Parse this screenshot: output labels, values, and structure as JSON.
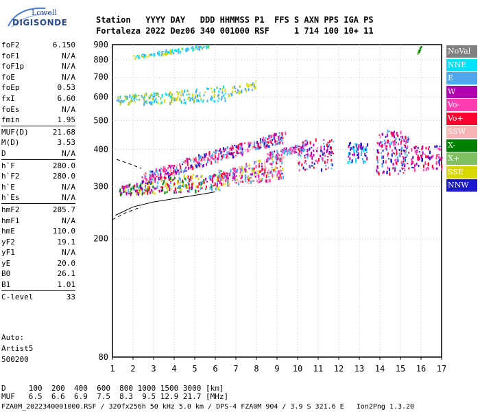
{
  "logo": {
    "line1": "Lowell",
    "line2": "DIGISONDE"
  },
  "header": {
    "row1": "Station   YYYY DAY   DDD HHMMSS P1  FFS S AXN PPS IGA PS",
    "row2": "Fortaleza 2022 Dez06 340 001000 RSF     1 714 100 10+ 11"
  },
  "params": [
    {
      "name": "foF2",
      "value": "6.150"
    },
    {
      "name": "foF1",
      "value": "N/A"
    },
    {
      "name": "foF1p",
      "value": "N/A"
    },
    {
      "name": "foE",
      "value": "N/A"
    },
    {
      "name": "foEp",
      "value": "0.53"
    },
    {
      "name": "fxI",
      "value": "6.60"
    },
    {
      "name": "foEs",
      "value": "N/A"
    },
    {
      "name": "fmin",
      "value": "1.95"
    },
    {
      "name": "MUF(D)",
      "value": "21.68",
      "sep": true
    },
    {
      "name": "M(D)",
      "value": "3.53"
    },
    {
      "name": "D",
      "value": "N/A"
    },
    {
      "name": "h`F",
      "value": "280.0",
      "sep": true
    },
    {
      "name": "h`F2",
      "value": "280.0"
    },
    {
      "name": "h`E",
      "value": "N/A"
    },
    {
      "name": "h`Es",
      "value": "N/A"
    },
    {
      "name": "hmF2",
      "value": "285.7",
      "sep": true
    },
    {
      "name": "hmF1",
      "value": "N/A"
    },
    {
      "name": "hmE",
      "value": "110.0"
    },
    {
      "name": "yF2",
      "value": "19.1"
    },
    {
      "name": "yF1",
      "value": "N/A"
    },
    {
      "name": "yE",
      "value": "20.0"
    },
    {
      "name": "B0",
      "value": "26.1"
    },
    {
      "name": "B1",
      "value": "1.01"
    },
    {
      "name": "C-level",
      "value": "33",
      "sep": true
    }
  ],
  "auto": {
    "line1": "Auto:",
    "line2": "Artist5",
    "line3": "500200"
  },
  "footer": {
    "d_row": "D     100  200  400  600  800 1000 1500 3000 [km]",
    "muf_row": "MUF   6.5  6.6  6.9  7.5  8.3  9.5 12.9 21.7 [MHz]",
    "info_row": "FZA0M_2022340001000.RSF / 320fx256h 50 kHz 5.0 km / DPS-4 FZA0M 904 / 3.9 S 321.6 E   Ion2Png 1.3.20"
  },
  "legend": [
    {
      "label": "NoVal",
      "color": "#808080"
    },
    {
      "label": "NNE",
      "color": "#00e0ff"
    },
    {
      "label": "E",
      "color": "#4fa8ee"
    },
    {
      "label": "W",
      "color": "#b000b0"
    },
    {
      "label": "Vo-",
      "color": "#ff3fb0"
    },
    {
      "label": "Vo+",
      "color": "#ff0030"
    },
    {
      "label": "SSW",
      "color": "#f8b4b4"
    },
    {
      "label": "X-",
      "color": "#008000"
    },
    {
      "label": "X+",
      "color": "#80c060"
    },
    {
      "label": "SSE",
      "color": "#d8d800"
    },
    {
      "label": "NNW",
      "color": "#1a1acc"
    }
  ],
  "chart_data": {
    "type": "scatter",
    "xlabel": "",
    "ylabel": "",
    "xlim": [
      1,
      17
    ],
    "ylim": [
      80,
      900
    ],
    "y_scale": "log",
    "xticks": [
      1,
      2,
      3,
      4,
      5,
      6,
      7,
      8,
      9,
      10,
      11,
      12,
      13,
      14,
      15,
      16,
      17
    ],
    "yticks": [
      80,
      200,
      300,
      400,
      500,
      600,
      700,
      800,
      900
    ],
    "grid": true,
    "legend_position": "right",
    "trace_curves": [
      {
        "name": "",
        "style": "solid",
        "points": [
          [
            1.15,
            240
          ],
          [
            2.0,
            256
          ],
          [
            3.0,
            266
          ],
          [
            4.0,
            273
          ],
          [
            5.0,
            280
          ],
          [
            5.8,
            286
          ],
          [
            6.0,
            288
          ]
        ]
      },
      {
        "name": "",
        "style": "dashed",
        "points": [
          [
            1.0,
            232
          ],
          [
            1.6,
            244
          ],
          [
            2.4,
            256
          ]
        ]
      },
      {
        "name": "",
        "style": "dashed",
        "points": [
          [
            1.2,
            370
          ],
          [
            1.8,
            358
          ],
          [
            2.4,
            345
          ]
        ]
      }
    ],
    "echo_bands": [
      {
        "x": [
          1.3,
          6.3
        ],
        "y_start": [
          280,
          300
        ],
        "y_end": [
          290,
          340
        ],
        "colors": [
          "#ff0030",
          "#b000b0",
          "#4fa8ee",
          "#d8d800",
          "#008000"
        ],
        "count": 260
      },
      {
        "x": [
          6.0,
          9.3
        ],
        "y_start": [
          300,
          330
        ],
        "y_end": [
          315,
          390
        ],
        "colors": [
          "#4fa8ee",
          "#d8d800",
          "#ff0030",
          "#b000b0",
          "#f8b4b4",
          "#ff3fb0"
        ],
        "count": 260
      },
      {
        "x": [
          8.5,
          10.3
        ],
        "y_start": [
          370,
          390
        ],
        "y_end": [
          395,
          415
        ],
        "colors": [
          "#4fa8ee",
          "#b000b0",
          "#ff3fb0"
        ],
        "count": 70
      },
      {
        "x": [
          2.4,
          9.4
        ],
        "y_start": [
          330,
          300
        ],
        "y_end": [
          460,
          420
        ],
        "colors": [
          "#b000b0",
          "#ff3fb0",
          "#ff0030",
          "#4fa8ee",
          "#1a1acc",
          "#f8b4b4"
        ],
        "count": 420
      },
      {
        "x": [
          10.0,
          11.7
        ],
        "y_start": [
          340,
          430
        ],
        "y_end": [
          340,
          430
        ],
        "colors": [
          "#b000b0",
          "#ff0030",
          "#ff3fb0",
          "#1a1acc",
          "#4fa8ee"
        ],
        "count": 110
      },
      {
        "x": [
          12.4,
          13.4
        ],
        "y_start": [
          360,
          420
        ],
        "y_end": [
          360,
          420
        ],
        "colors": [
          "#1a1acc",
          "#4fa8ee",
          "#b000b0",
          "#00e0ff"
        ],
        "count": 70
      },
      {
        "x": [
          13.8,
          15.4
        ],
        "y_start": [
          330,
          460
        ],
        "y_end": [
          330,
          460
        ],
        "colors": [
          "#b000b0",
          "#ff3fb0",
          "#1a1acc",
          "#4fa8ee",
          "#ff0030"
        ],
        "count": 170
      },
      {
        "x": [
          15.5,
          17.0
        ],
        "y_start": [
          340,
          410
        ],
        "y_end": [
          340,
          410
        ],
        "colors": [
          "#b000b0",
          "#ff3fb0",
          "#1a1acc",
          "#ff0030"
        ],
        "count": 90
      },
      {
        "x": [
          1.2,
          6.5
        ],
        "y_start": [
          560,
          600
        ],
        "y_end": [
          580,
          650
        ],
        "colors": [
          "#4fa8ee",
          "#d8d800",
          "#80c060",
          "#00e0ff"
        ],
        "count": 190
      },
      {
        "x": [
          6.6,
          8.0
        ],
        "y_start": [
          600,
          640
        ],
        "y_end": [
          640,
          680
        ],
        "colors": [
          "#4fa8ee",
          "#d8d800"
        ],
        "count": 40
      },
      {
        "x": [
          2.0,
          5.7
        ],
        "y_start": [
          800,
          830
        ],
        "y_end": [
          880,
          900
        ],
        "colors": [
          "#4fa8ee",
          "#d8d800",
          "#00e0ff"
        ],
        "count": 90
      },
      {
        "x": [
          15.8,
          16.0
        ],
        "y_start": [
          830,
          840
        ],
        "y_end": [
          880,
          890
        ],
        "colors": [
          "#008000",
          "#80c060"
        ],
        "count": 14
      }
    ]
  }
}
